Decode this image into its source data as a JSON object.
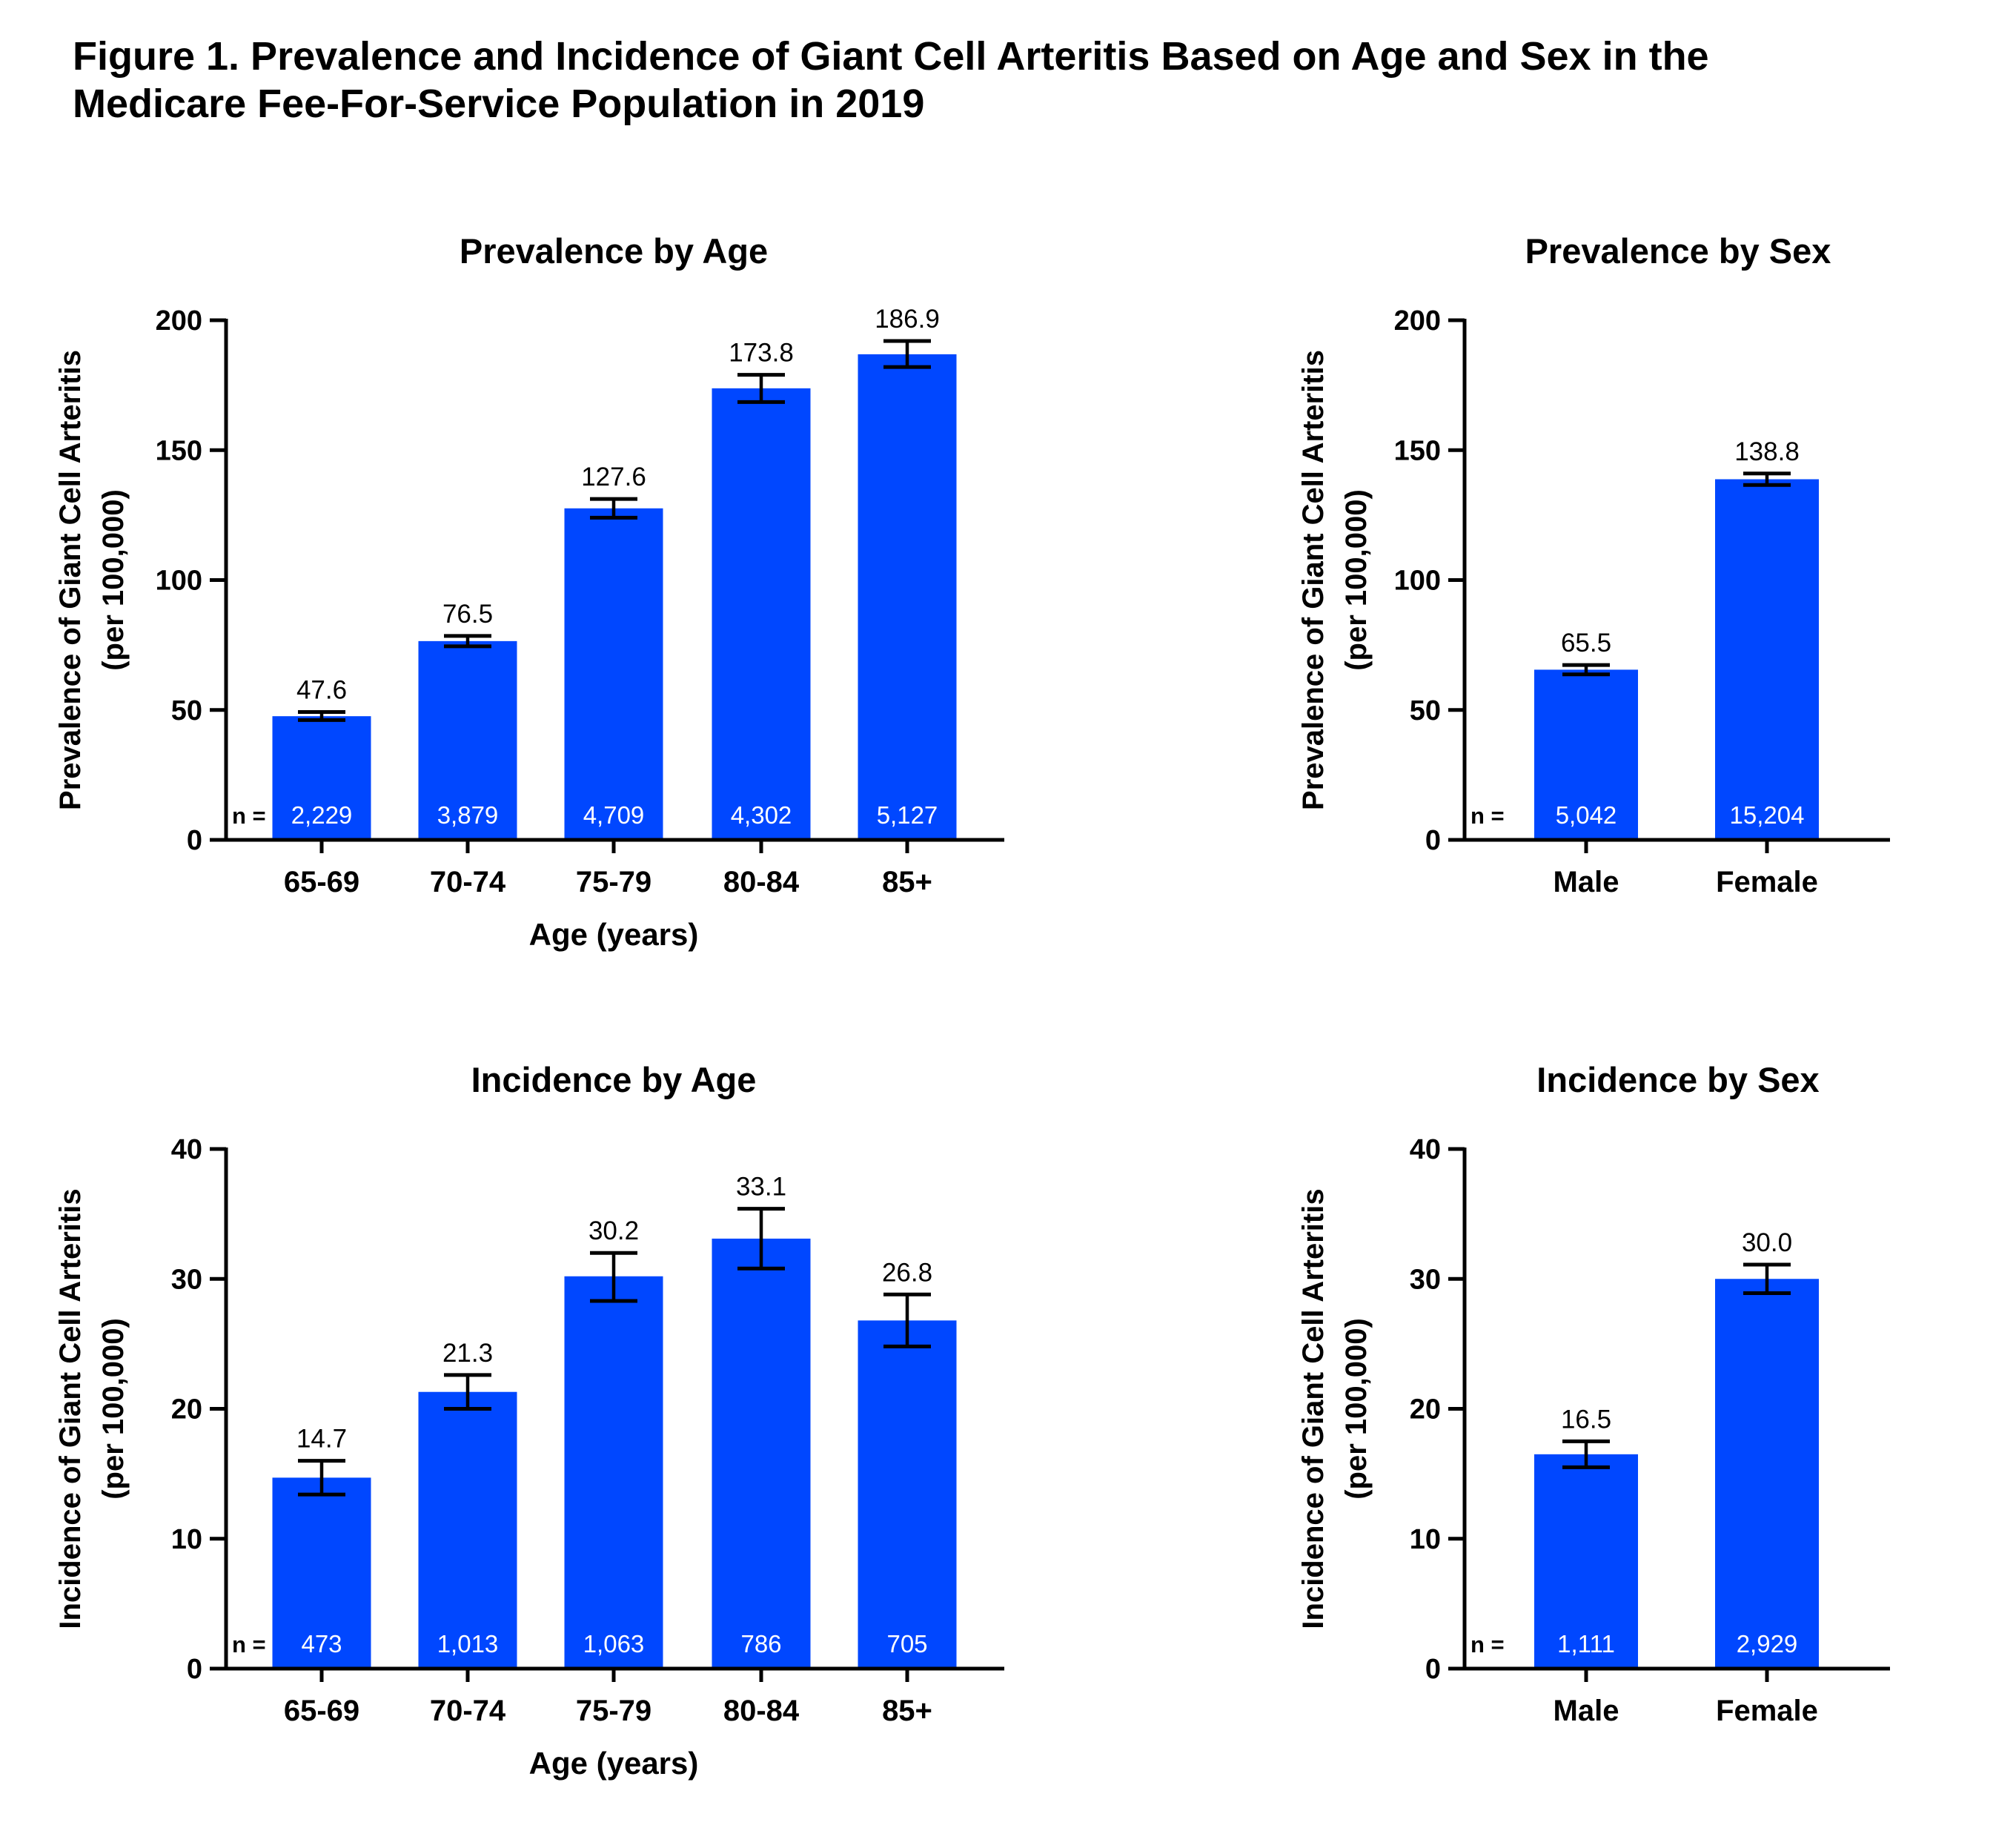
{
  "figure_title": {
    "line1": "Figure 1. Prevalence and Incidence of Giant Cell Arteritis Based on Age and Sex in the",
    "line2": "Medicare Fee-For-Service Population in 2019"
  },
  "colors": {
    "bar": "#0047FF",
    "axis": "#000000",
    "n_text": "#FFFFFF"
  },
  "chart_data": [
    {
      "type": "bar",
      "title": "Prevalence by Age",
      "ylabel": [
        "Prevalence of Giant Cell Arteritis",
        "(per 100,000)"
      ],
      "xlabel": "Age (years)",
      "ylim": [
        0,
        200
      ],
      "yticks": [
        0,
        50,
        100,
        150,
        200
      ],
      "categories": [
        "65-69",
        "70-74",
        "75-79",
        "80-84",
        "85+"
      ],
      "values": [
        47.6,
        76.5,
        127.6,
        173.8,
        186.9
      ],
      "value_labels": [
        "47.6",
        "76.5",
        "127.6",
        "173.8",
        "186.9"
      ],
      "ci_low": [
        46.1,
        74.5,
        124.0,
        168.5,
        182.0
      ],
      "ci_high": [
        49.2,
        78.5,
        131.2,
        179.0,
        192.0
      ],
      "n_prefix": "n =",
      "n": [
        "2,229",
        "3,879",
        "4,709",
        "4,302",
        "5,127"
      ]
    },
    {
      "type": "bar",
      "title": "Prevalence by Sex",
      "ylabel": [
        "Prevalence of Giant Cell Arteritis",
        "(per 100,000)"
      ],
      "xlabel": "",
      "ylim": [
        0,
        200
      ],
      "yticks": [
        0,
        50,
        100,
        150,
        200
      ],
      "categories": [
        "Male",
        "Female"
      ],
      "values": [
        65.5,
        138.8
      ],
      "value_labels": [
        "65.5",
        "138.8"
      ],
      "ci_low": [
        63.7,
        136.6
      ],
      "ci_high": [
        67.3,
        141.0
      ],
      "n_prefix": "n =",
      "n": [
        "5,042",
        "15,204"
      ]
    },
    {
      "type": "bar",
      "title": "Incidence by Age",
      "ylabel": [
        "Incidence of Giant Cell Arteritis",
        "(per 100,000)"
      ],
      "xlabel": "Age (years)",
      "ylim": [
        0,
        40
      ],
      "yticks": [
        0,
        10,
        20,
        30,
        40
      ],
      "categories": [
        "65-69",
        "70-74",
        "75-79",
        "80-84",
        "85+"
      ],
      "values": [
        14.7,
        21.3,
        30.2,
        33.1,
        26.8
      ],
      "value_labels": [
        "14.7",
        "21.3",
        "30.2",
        "33.1",
        "26.8"
      ],
      "ci_low": [
        13.4,
        20.0,
        28.3,
        30.8,
        24.8
      ],
      "ci_high": [
        16.0,
        22.6,
        32.0,
        35.4,
        28.8
      ],
      "n_prefix": "n =",
      "n": [
        "473",
        "1,013",
        "1,063",
        "786",
        "705"
      ]
    },
    {
      "type": "bar",
      "title": "Incidence by Sex",
      "ylabel": [
        "Incidence of Giant Cell Arteritis",
        "(per 100,000)"
      ],
      "xlabel": "",
      "ylim": [
        0,
        40
      ],
      "yticks": [
        0,
        10,
        20,
        30,
        40
      ],
      "categories": [
        "Male",
        "Female"
      ],
      "values": [
        16.5,
        30.0
      ],
      "value_labels": [
        "16.5",
        "30.0"
      ],
      "ci_low": [
        15.5,
        28.9
      ],
      "ci_high": [
        17.5,
        31.1
      ],
      "n_prefix": "n =",
      "n": [
        "1,111",
        "2,929"
      ]
    }
  ]
}
